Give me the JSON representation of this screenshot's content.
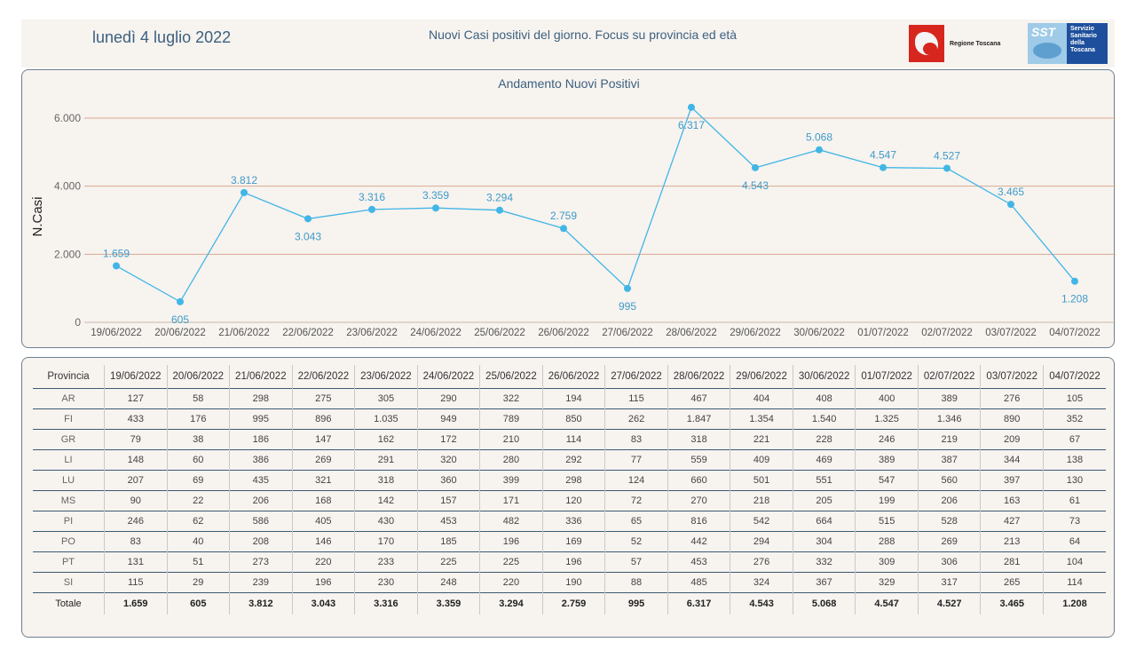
{
  "header": {
    "date": "lunedì 4 luglio 2022",
    "subtitle": "Nuovi Casi positivi del giorno. Focus su provincia ed età",
    "logo_regione": "Regione Toscana",
    "logo_sst_short": "SST",
    "logo_sst_text": [
      "Servizio",
      "Sanitario",
      "della",
      "Toscana"
    ]
  },
  "chart_data": {
    "type": "line",
    "title": "Andamento Nuovi Positivi",
    "ylabel": "N.Casi",
    "xlabel": "",
    "ylim": [
      0,
      6500
    ],
    "yticks": [
      0,
      2000,
      4000,
      6000
    ],
    "ytick_labels": [
      "0",
      "2.000",
      "4.000",
      "6.000"
    ],
    "grid": true,
    "categories": [
      "19/06/2022",
      "20/06/2022",
      "21/06/2022",
      "22/06/2022",
      "23/06/2022",
      "24/06/2022",
      "25/06/2022",
      "26/06/2022",
      "27/06/2022",
      "28/06/2022",
      "29/06/2022",
      "30/06/2022",
      "01/07/2022",
      "02/07/2022",
      "03/07/2022",
      "04/07/2022"
    ],
    "values": [
      1659,
      605,
      3812,
      3043,
      3316,
      3359,
      3294,
      2759,
      995,
      6317,
      4543,
      5068,
      4547,
      4527,
      3465,
      1208
    ],
    "value_labels": [
      "1.659",
      "605",
      "3.812",
      "3.043",
      "3.316",
      "3.359",
      "3.294",
      "2.759",
      "995",
      "6.317",
      "4.543",
      "5.068",
      "4.547",
      "4.527",
      "3.465",
      "1.208"
    ],
    "label_positions": [
      "above",
      "below",
      "above",
      "below",
      "above",
      "above",
      "above",
      "above",
      "below",
      "below",
      "below",
      "above",
      "above",
      "above",
      "above",
      "below"
    ],
    "line_color": "#41b6e6",
    "grid_color": "#d9a891"
  },
  "table": {
    "header_first": "Provincia",
    "columns": [
      "19/06/2022",
      "20/06/2022",
      "21/06/2022",
      "22/06/2022",
      "23/06/2022",
      "24/06/2022",
      "25/06/2022",
      "26/06/2022",
      "27/06/2022",
      "28/06/2022",
      "29/06/2022",
      "30/06/2022",
      "01/07/2022",
      "02/07/2022",
      "03/07/2022",
      "04/07/2022"
    ],
    "rows": [
      {
        "prov": "AR",
        "values": [
          "127",
          "58",
          "298",
          "275",
          "305",
          "290",
          "322",
          "194",
          "115",
          "467",
          "404",
          "408",
          "400",
          "389",
          "276",
          "105"
        ]
      },
      {
        "prov": "FI",
        "values": [
          "433",
          "176",
          "995",
          "896",
          "1.035",
          "949",
          "789",
          "850",
          "262",
          "1.847",
          "1.354",
          "1.540",
          "1.325",
          "1.346",
          "890",
          "352"
        ]
      },
      {
        "prov": "GR",
        "values": [
          "79",
          "38",
          "186",
          "147",
          "162",
          "172",
          "210",
          "114",
          "83",
          "318",
          "221",
          "228",
          "246",
          "219",
          "209",
          "67"
        ]
      },
      {
        "prov": "LI",
        "values": [
          "148",
          "60",
          "386",
          "269",
          "291",
          "320",
          "280",
          "292",
          "77",
          "559",
          "409",
          "469",
          "389",
          "387",
          "344",
          "138"
        ]
      },
      {
        "prov": "LU",
        "values": [
          "207",
          "69",
          "435",
          "321",
          "318",
          "360",
          "399",
          "298",
          "124",
          "660",
          "501",
          "551",
          "547",
          "560",
          "397",
          "130"
        ]
      },
      {
        "prov": "MS",
        "values": [
          "90",
          "22",
          "206",
          "168",
          "142",
          "157",
          "171",
          "120",
          "72",
          "270",
          "218",
          "205",
          "199",
          "206",
          "163",
          "61"
        ]
      },
      {
        "prov": "PI",
        "values": [
          "246",
          "62",
          "586",
          "405",
          "430",
          "453",
          "482",
          "336",
          "65",
          "816",
          "542",
          "664",
          "515",
          "528",
          "427",
          "73"
        ]
      },
      {
        "prov": "PO",
        "values": [
          "83",
          "40",
          "208",
          "146",
          "170",
          "185",
          "196",
          "169",
          "52",
          "442",
          "294",
          "304",
          "288",
          "269",
          "213",
          "64"
        ]
      },
      {
        "prov": "PT",
        "values": [
          "131",
          "51",
          "273",
          "220",
          "233",
          "225",
          "225",
          "196",
          "57",
          "453",
          "276",
          "332",
          "309",
          "306",
          "281",
          "104"
        ]
      },
      {
        "prov": "SI",
        "values": [
          "115",
          "29",
          "239",
          "196",
          "230",
          "248",
          "220",
          "190",
          "88",
          "485",
          "324",
          "367",
          "329",
          "317",
          "265",
          "114"
        ]
      }
    ],
    "total": {
      "prov": "Totale",
      "values": [
        "1.659",
        "605",
        "3.812",
        "3.043",
        "3.316",
        "3.359",
        "3.294",
        "2.759",
        "995",
        "6.317",
        "4.543",
        "5.068",
        "4.547",
        "4.527",
        "3.465",
        "1.208"
      ]
    }
  }
}
